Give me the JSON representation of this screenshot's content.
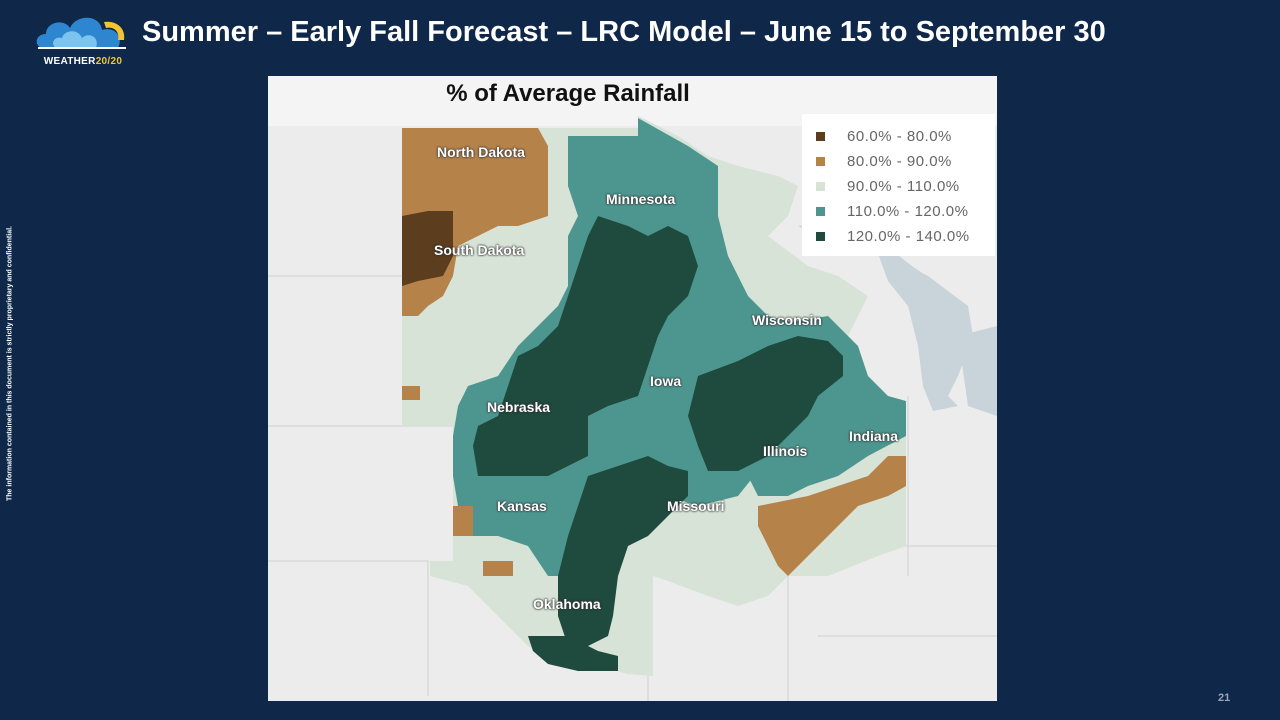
{
  "logo": {
    "name": "WEATHER",
    "suffix": "20/20",
    "icon": "cloud-logo-icon"
  },
  "title": "Summer – Early Fall Forecast – LRC Model – June 15 to September 30",
  "side_note": "The information contained in this document is strictly proprietary and confidential.",
  "map": {
    "title": "% of Average Rainfall",
    "legend": [
      {
        "label": "60.0% - 80.0%",
        "color": "#5c3d1e"
      },
      {
        "label": "80.0% - 90.0%",
        "color": "#b5824a"
      },
      {
        "label": "90.0% - 110.0%",
        "color": "#d6e3d6"
      },
      {
        "label": "110.0% - 120.0%",
        "color": "#4d9690"
      },
      {
        "label": "120.0% - 140.0%",
        "color": "#1f4a3e"
      }
    ],
    "states": {
      "north_dakota": "North Dakota",
      "south_dakota": "South Dakota",
      "minnesota": "Minnesota",
      "wisconsin": "Wisconsin",
      "iowa": "Iowa",
      "nebraska": "Nebraska",
      "illinois": "Illinois",
      "indiana": "Indiana",
      "kansas": "Kansas",
      "missouri": "Missouri",
      "oklahoma": "Oklahoma"
    }
  },
  "page_number": "21"
}
